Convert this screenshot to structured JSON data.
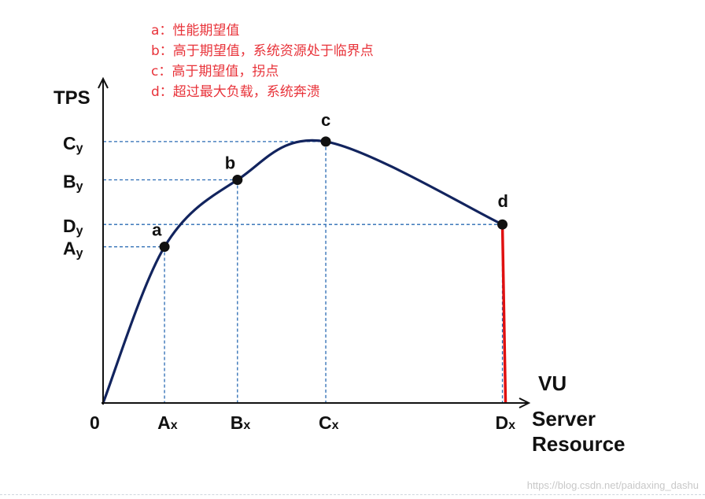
{
  "legend": [
    "a：性能期望值",
    "b：高于期望值，系统资源处于临界点",
    "c：高于期望值，拐点",
    "d：超过最大负载，系统奔溃"
  ],
  "watermark": "https://blog.csdn.net/paidaxing_dashu",
  "chart_data": {
    "type": "line",
    "title": "",
    "ylabel": "TPS",
    "xlabel_lines": [
      "VU",
      "Server",
      "Resource"
    ],
    "origin_label": "0",
    "points": [
      {
        "label": "a",
        "x_tick": "Ax",
        "x_sub": "x",
        "x_main": "A",
        "y_tick": "Ay",
        "y_main": "A",
        "y_sub": "y",
        "x": 0.16,
        "y": 0.49
      },
      {
        "label": "b",
        "x_tick": "Bx",
        "x_sub": "x",
        "x_main": "B",
        "y_tick": "By",
        "y_main": "B",
        "y_sub": "y",
        "x": 0.35,
        "y": 0.7
      },
      {
        "label": "c",
        "x_tick": "Cx",
        "x_sub": "x",
        "x_main": "C",
        "y_tick": "Cy",
        "y_main": "C",
        "y_sub": "y",
        "x": 0.58,
        "y": 0.82
      },
      {
        "label": "d",
        "x_tick": "Dx",
        "x_sub": "x",
        "x_main": "D",
        "y_tick": "Dy",
        "y_main": "D",
        "y_sub": "y",
        "x": 1.04,
        "y": 0.56
      }
    ],
    "curve_color": "#12245e",
    "drop_color": "#e01010",
    "guide_color": "#2a6bb3",
    "grid": false
  }
}
